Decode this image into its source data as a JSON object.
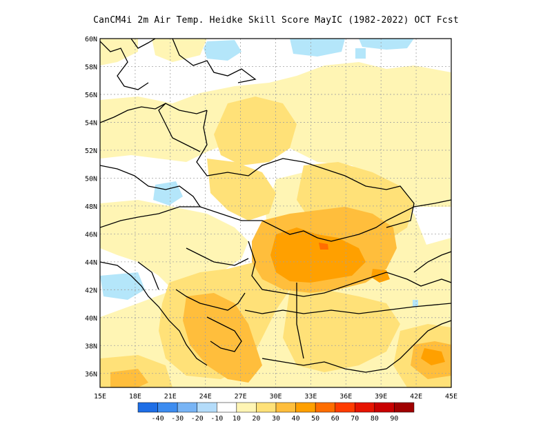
{
  "title": "CanCM4i  2m Air Temp. Heidke Skill Score MayIC (1982-2022) OCT Fcst",
  "map": {
    "lon_range": [
      15,
      45
    ],
    "lat_range": [
      35,
      60
    ],
    "lon_labels": [
      "15E",
      "18E",
      "21E",
      "24E",
      "27E",
      "30E",
      "33E",
      "36E",
      "39E",
      "42E",
      "45E"
    ],
    "lat_labels": [
      "36N",
      "38N",
      "40N",
      "42N",
      "44N",
      "46N",
      "48N",
      "50N",
      "52N",
      "54N",
      "56N",
      "58N",
      "60N"
    ],
    "grid": true
  },
  "colorbar": {
    "labels": [
      "-40",
      "-30",
      "-20",
      "-10",
      "10",
      "20",
      "30",
      "40",
      "50",
      "60",
      "70",
      "80",
      "90"
    ],
    "colors": [
      "#1e6ee6",
      "#3c8cf0",
      "#78b4f5",
      "#b4dcfa",
      "#ffffff",
      "#fff5b4",
      "#ffe178",
      "#ffbe3c",
      "#ffa000",
      "#ff6e00",
      "#ff3c00",
      "#e61400",
      "#c80000",
      "#a00000"
    ]
  },
  "colors": {
    "neg10": "#b4e6fa",
    "pos10": "#fff5b4",
    "pos20": "#ffe178",
    "pos30": "#ffbe3c",
    "pos40": "#ffa000",
    "pos50": "#ff6e00"
  }
}
